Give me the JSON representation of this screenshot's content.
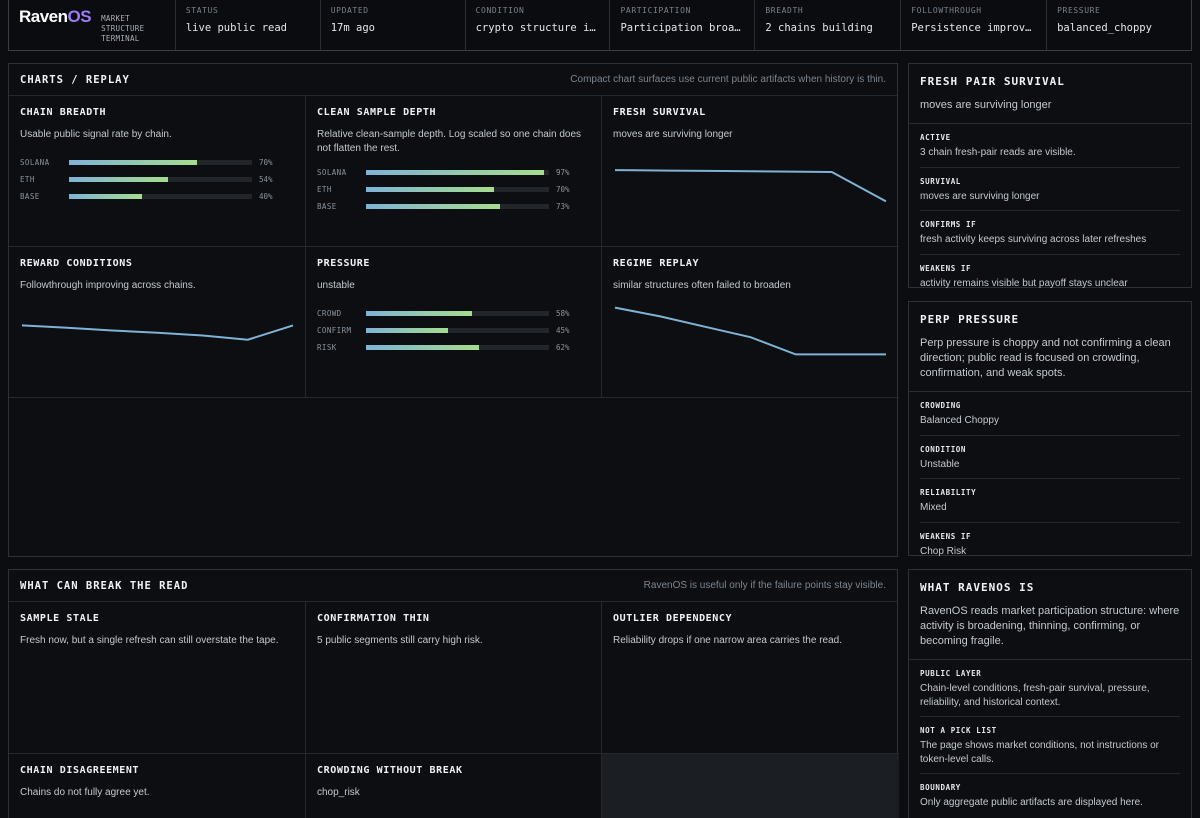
{
  "brand": {
    "logo_main": "Raven",
    "logo_accent": "OS",
    "subtitle": [
      "MARKET",
      "STRUCTURE",
      "TERMINAL"
    ]
  },
  "status_bar": [
    {
      "label": "STATUS",
      "value": "live public read"
    },
    {
      "label": "UPDATED",
      "value": "17m ago"
    },
    {
      "label": "CONDITION",
      "value": "crypto structure is m…"
    },
    {
      "label": "PARTICIPATION",
      "value": "Participation broaden…"
    },
    {
      "label": "BREADTH",
      "value": "2 chains building"
    },
    {
      "label": "FOLLOWTHROUGH",
      "value": "Persistence improving."
    },
    {
      "label": "PRESSURE",
      "value": "balanced_choppy"
    }
  ],
  "charts_panel": {
    "title": "CHARTS / REPLAY",
    "note": "Compact chart surfaces use current public artifacts when history is thin.",
    "cells": {
      "chain_breadth": {
        "title": "CHAIN BREADTH",
        "subtitle": "Usable public signal rate by chain.",
        "bars": [
          {
            "name": "SOLANA",
            "pct": 70,
            "label": "70%"
          },
          {
            "name": "ETH",
            "pct": 54,
            "label": "54%"
          },
          {
            "name": "BASE",
            "pct": 40,
            "label": "40%"
          }
        ]
      },
      "clean_sample_depth": {
        "title": "CLEAN SAMPLE DEPTH",
        "subtitle": "Relative clean-sample depth. Log scaled so one chain does not flatten the rest.",
        "bars": [
          {
            "name": "SOLANA",
            "pct": 97,
            "label": "97%"
          },
          {
            "name": "ETH",
            "pct": 70,
            "label": "70%"
          },
          {
            "name": "BASE",
            "pct": 73,
            "label": "73%"
          }
        ]
      },
      "fresh_survival": {
        "title": "FRESH SURVIVAL",
        "subtitle": "moves are surviving longer",
        "line": [
          0.78,
          0.77,
          0.76,
          0.75,
          0.74,
          0.1
        ]
      },
      "reward_conditions": {
        "title": "REWARD CONDITIONS",
        "subtitle": "Followthrough improving across chains.",
        "line": [
          0.6,
          0.55,
          0.49,
          0.44,
          0.38,
          0.29,
          0.6
        ]
      },
      "pressure": {
        "title": "PRESSURE",
        "subtitle": "unstable",
        "bars": [
          {
            "name": "CROWD",
            "pct": 58,
            "label": "58%"
          },
          {
            "name": "CONFIRM",
            "pct": 45,
            "label": "45%"
          },
          {
            "name": "RISK",
            "pct": 62,
            "label": "62%"
          }
        ]
      },
      "regime_replay": {
        "title": "REGIME REPLAY",
        "subtitle": "similar structures often failed to broaden",
        "line": [
          0.95,
          0.78,
          0.58,
          0.38,
          0.05,
          0.05,
          0.05
        ]
      }
    }
  },
  "break_panel": {
    "title": "WHAT CAN BREAK THE READ",
    "note": "RavenOS is useful only if the failure points stay visible.",
    "cells": [
      {
        "title": "SAMPLE STALE",
        "text": "Fresh now, but a single refresh can still overstate the tape."
      },
      {
        "title": "CONFIRMATION THIN",
        "text": "5 public segments still carry high risk."
      },
      {
        "title": "OUTLIER DEPENDENCY",
        "text": "Reliability drops if one narrow area carries the read."
      },
      {
        "title": "CHAIN DISAGREEMENT",
        "text": "Chains do not fully agree yet."
      },
      {
        "title": "CROWDING WITHOUT BREAK",
        "text": "chop_risk"
      }
    ]
  },
  "fresh_pair": {
    "title": "FRESH PAIR SURVIVAL",
    "subtitle": "moves are surviving longer",
    "items": [
      {
        "label": "ACTIVE",
        "value": "3 chain fresh-pair reads are visible."
      },
      {
        "label": "SURVIVAL",
        "value": "moves are surviving longer"
      },
      {
        "label": "CONFIRMS IF",
        "value": "fresh activity keeps surviving across later refreshes"
      },
      {
        "label": "WEAKENS IF",
        "value": "activity remains visible but payoff stays unclear"
      }
    ]
  },
  "perp_pressure": {
    "title": "PERP PRESSURE",
    "subtitle": "Perp pressure is choppy and not confirming a clean direction; public read is focused on crowding, confirmation, and weak spots.",
    "items": [
      {
        "label": "CROWDING",
        "value": "Balanced Choppy"
      },
      {
        "label": "CONDITION",
        "value": "Unstable"
      },
      {
        "label": "RELIABILITY",
        "value": "Mixed"
      },
      {
        "label": "WEAKENS IF",
        "value": "Chop Risk"
      }
    ]
  },
  "what_is": {
    "title": "WHAT RAVENOS IS",
    "subtitle": "RavenOS reads market participation structure: where activity is broadening, thinning, confirming, or becoming fragile.",
    "items": [
      {
        "label": "PUBLIC LAYER",
        "value": "Chain-level conditions, fresh-pair survival, pressure, reliability, and historical context."
      },
      {
        "label": "NOT A PICK LIST",
        "value": "The page shows market conditions, not instructions or token-level calls."
      },
      {
        "label": "BOUNDARY",
        "value": "Only aggregate public artifacts are displayed here."
      }
    ]
  },
  "colors": {
    "line": "#7fb3d6",
    "bar_start": "#7fb3d6",
    "bar_end": "#a6dc8e",
    "logo_accent": "#9b7cf6"
  }
}
